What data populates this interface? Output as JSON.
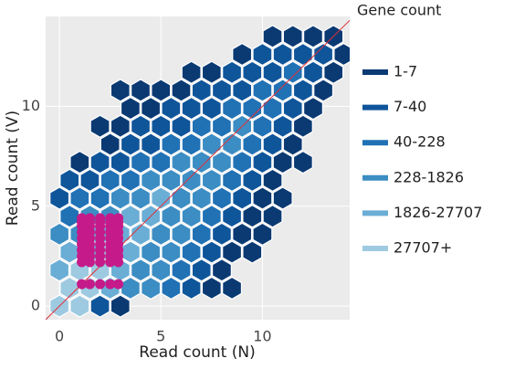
{
  "chart_data": {
    "type": "hexbin",
    "x_label": "Read count (N)",
    "y_label": "Read count (V)",
    "legend_title": "Gene count",
    "xlim": [
      -0.68,
      14.3
    ],
    "ylim": [
      -0.68,
      14.5
    ],
    "xticks": [
      0,
      5,
      10
    ],
    "yticks": [
      0,
      5,
      10
    ],
    "grid": true,
    "series": [
      {
        "name": "1-7",
        "color": "#0b3a73",
        "x": [
          3,
          7.5,
          8.5,
          8,
          8.5,
          9.5,
          9,
          10,
          9.5,
          10.5,
          10,
          11,
          10.5,
          1,
          11,
          12,
          2.5,
          11.5,
          2,
          3,
          12,
          3.5,
          4.5,
          12.5,
          3,
          4,
          5,
          6,
          13,
          6.5,
          7.5,
          13.5,
          9,
          14,
          10.5,
          11.5,
          12.5,
          13.5
        ],
        "y": [
          0,
          0.9,
          0.9,
          1.8,
          2.7,
          2.7,
          3.6,
          3.6,
          4.5,
          4.5,
          5.4,
          5.4,
          6.3,
          7.2,
          7.2,
          7.2,
          8.1,
          8.1,
          9,
          9,
          9,
          9.9,
          9.9,
          9.9,
          10.8,
          10.8,
          10.8,
          10.8,
          10.8,
          11.7,
          11.7,
          11.7,
          12.6,
          12.6,
          13.5,
          13.5,
          13.5,
          13.5
        ]
      },
      {
        "name": "7-40",
        "color": "#0f559a",
        "x": [
          2,
          6.5,
          7,
          7.5,
          8,
          8.5,
          0,
          9,
          0.5,
          1.5,
          9.5,
          2,
          3,
          10,
          3.5,
          4.5,
          10.5,
          4,
          5,
          6,
          11,
          5.5,
          6.5,
          7.5,
          11.5,
          7,
          8,
          9,
          12,
          8.5,
          9.5,
          10.5,
          12.5,
          10,
          11,
          12,
          13
        ],
        "y": [
          0,
          0.9,
          1.8,
          2.7,
          3.6,
          4.5,
          5.4,
          5.4,
          6.3,
          6.3,
          6.3,
          7.2,
          7.2,
          7.2,
          8.1,
          8.1,
          8.1,
          9,
          9,
          9,
          9,
          9.9,
          9.9,
          9.9,
          9.9,
          10.8,
          10.8,
          10.8,
          10.8,
          11.7,
          11.7,
          11.7,
          11.7,
          12.6,
          12.6,
          12.6,
          12.6
        ]
      },
      {
        "name": "40-228",
        "color": "#2171b5",
        "x": [
          5.5,
          6,
          6.5,
          7,
          0.5,
          7.5,
          1,
          2,
          8,
          2.5,
          3.5,
          8.5,
          4,
          5,
          9,
          5.5,
          6.5,
          9.5,
          7,
          8,
          10,
          8.5,
          9.5,
          10.5,
          10,
          11,
          11.5
        ],
        "y": [
          0.9,
          1.8,
          2.7,
          3.6,
          4.5,
          4.5,
          5.4,
          5.4,
          5.4,
          6.3,
          6.3,
          6.3,
          7.2,
          7.2,
          7.2,
          8.1,
          8.1,
          8.1,
          9,
          9,
          9,
          9.9,
          9.9,
          9.9,
          10.8,
          10.8,
          11.7
        ]
      },
      {
        "name": "228-1826",
        "color": "#3c8dc3",
        "x": [
          3.5,
          4.5,
          4,
          5,
          4.5,
          5.5,
          0,
          1,
          5,
          6,
          1.5,
          2.5,
          5.5,
          6.5,
          3,
          4,
          6,
          7,
          4.5,
          5.5,
          6.5,
          7.5,
          6,
          7,
          8,
          7.5,
          8.5,
          9
        ],
        "y": [
          0.9,
          0.9,
          1.8,
          1.8,
          2.7,
          2.7,
          3.6,
          3.6,
          3.6,
          3.6,
          4.5,
          4.5,
          4.5,
          4.5,
          5.4,
          5.4,
          5.4,
          5.4,
          6.3,
          6.3,
          6.3,
          6.3,
          7.2,
          7.2,
          7.2,
          8.1,
          8.1,
          9
        ]
      },
      {
        "name": "1826-27707",
        "color": "#6aaed6",
        "x": [
          2.5,
          0,
          3,
          0.5,
          1.5,
          3.5,
          2,
          3,
          4,
          3.5,
          4.5,
          5
        ],
        "y": [
          0.9,
          1.8,
          1.8,
          2.7,
          2.7,
          2.7,
          3.6,
          3.6,
          3.6,
          4.5,
          4.5,
          5.4
        ]
      },
      {
        "name": "27707+",
        "color": "#9ecae1",
        "x": [
          0,
          1,
          0.5,
          1.5,
          1,
          2,
          2.5
        ],
        "y": [
          0,
          0,
          0.9,
          0.9,
          1.8,
          1.8,
          2.7
        ]
      }
    ],
    "points": {
      "color": "#c51b8a",
      "x": [
        1.1,
        1.5,
        2,
        2.5,
        2.9,
        1.1,
        1.5,
        2,
        2.5,
        2.9,
        1.1,
        1.5,
        2,
        2.5,
        2.9,
        1.1,
        1.5,
        2,
        2.5,
        2.9,
        1.1,
        1.5,
        2,
        2.5,
        2.9,
        1.1,
        1.5,
        2,
        2.5,
        2.9,
        1.1,
        1.5,
        2,
        2.5,
        2.9,
        1.1,
        1.5,
        2,
        2.5,
        2.9,
        1.1,
        1.5,
        2,
        2.5,
        2.9,
        1.1,
        1.5,
        2,
        2.5,
        2.9
      ],
      "y": [
        1.1,
        1.1,
        1.1,
        1.1,
        1.1,
        2.2,
        2.2,
        2.2,
        2.2,
        2.2,
        2.5,
        2.5,
        2.5,
        2.5,
        2.5,
        2.8,
        2.8,
        2.8,
        2.8,
        2.8,
        3.1,
        3.1,
        3.1,
        3.1,
        3.1,
        3.4,
        3.4,
        3.4,
        3.4,
        3.4,
        3.7,
        3.7,
        3.7,
        3.7,
        3.7,
        4,
        4,
        4,
        4,
        4,
        4.2,
        4.2,
        4.2,
        4.2,
        4.2,
        4.4,
        4.4,
        4.4,
        4.4,
        4.4
      ]
    },
    "reference_line": {
      "slope": 1,
      "intercept": 0,
      "color": "#e0313a"
    }
  }
}
